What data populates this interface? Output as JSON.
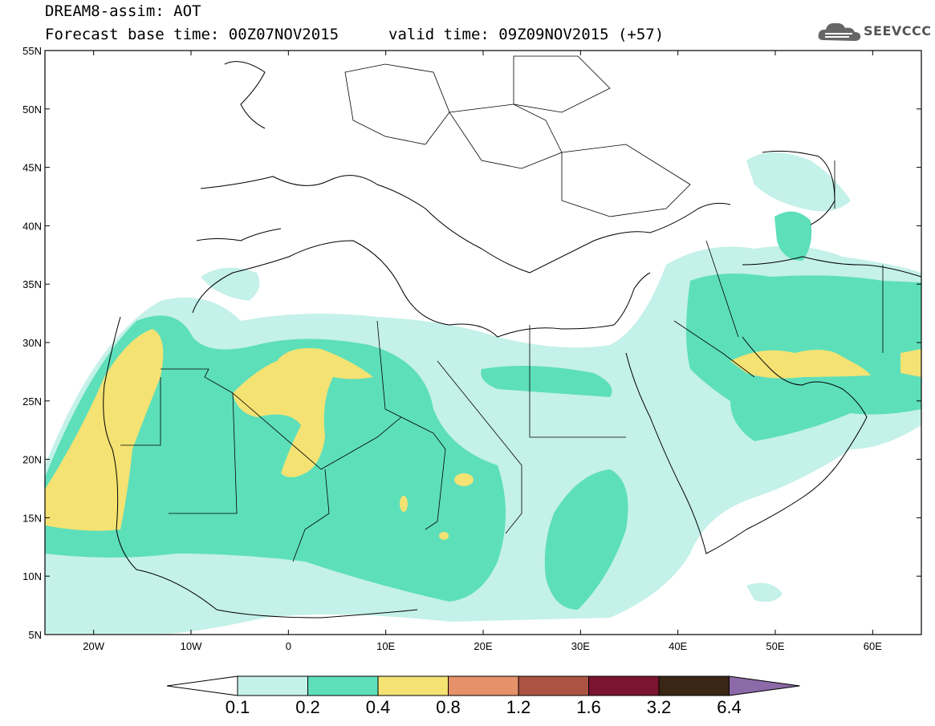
{
  "header": {
    "title_line1": "DREAM8-assim: AOT",
    "title_line2": "Forecast base time: 00Z07NOV2015",
    "valid_time": "valid time: 09Z09NOV2015 (+57)",
    "logo_text": "SEEVCCC"
  },
  "map": {
    "projection": "lat-lon",
    "lon_range": [
      -25,
      65
    ],
    "lat_range": [
      5,
      55
    ],
    "lat_labels": [
      "55N",
      "50N",
      "45N",
      "40N",
      "35N",
      "30N",
      "25N",
      "20N",
      "15N",
      "10N",
      "5N"
    ],
    "lon_labels": [
      "20W",
      "10W",
      "0",
      "10E",
      "20E",
      "30E",
      "40E",
      "50E",
      "60E"
    ],
    "background_color": "#ffffff",
    "border_color": "#000000"
  },
  "colorbar": {
    "levels": [
      "0.1",
      "0.2",
      "0.4",
      "0.8",
      "1.2",
      "1.6",
      "3.2",
      "6.4"
    ],
    "colors": [
      "#c4f1e9",
      "#5ddfba",
      "#f4e273",
      "#e5916a",
      "#ac5444",
      "#7b1430",
      "#3a2614",
      "#8c69a7"
    ],
    "under_color": "#ffffff"
  }
}
